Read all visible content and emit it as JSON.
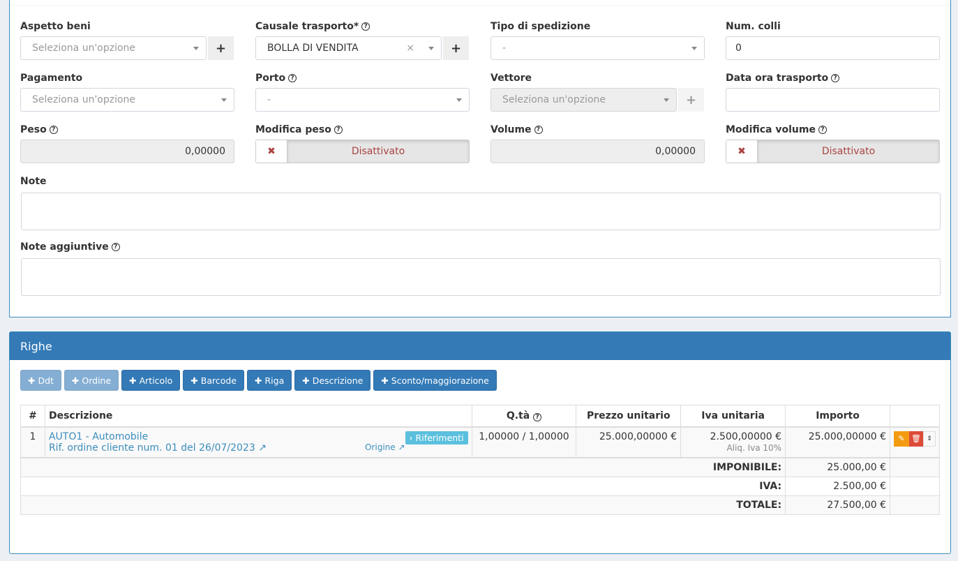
{
  "form": {
    "aspetto_beni": {
      "label": "Aspetto beni",
      "placeholder": "Seleziona un'opzione"
    },
    "causale": {
      "label": "Causale trasporto*",
      "value": "BOLLA DI VENDITA"
    },
    "tipo_spedizione": {
      "label": "Tipo di spedizione",
      "value": "-"
    },
    "num_colli": {
      "label": "Num. colli",
      "value": "0"
    },
    "pagamento": {
      "label": "Pagamento",
      "placeholder": "Seleziona un'opzione"
    },
    "porto": {
      "label": "Porto",
      "value": "-"
    },
    "vettore": {
      "label": "Vettore",
      "placeholder": "Seleziona un'opzione"
    },
    "data_ora": {
      "label": "Data ora trasporto",
      "value": ""
    },
    "peso": {
      "label": "Peso",
      "value": "0,00000"
    },
    "modifica_peso": {
      "label": "Modifica peso",
      "value": "Disattivato"
    },
    "volume": {
      "label": "Volume",
      "value": "0,00000"
    },
    "modifica_volume": {
      "label": "Modifica volume",
      "value": "Disattivato"
    },
    "note": {
      "label": "Note"
    },
    "note_aggiuntive": {
      "label": "Note aggiuntive"
    }
  },
  "righe": {
    "title": "Righe",
    "buttons": [
      "Ddt",
      "Ordine",
      "Articolo",
      "Barcode",
      "Riga",
      "Descrizione",
      "Sconto/maggiorazione"
    ],
    "columns": [
      "#",
      "Descrizione",
      "Q.tà",
      "Prezzo unitario",
      "Iva unitaria",
      "Importo"
    ],
    "rows": [
      {
        "n": "1",
        "desc": "AUTO1 - Automobile",
        "ref": "Rif. ordine cliente num. 01 del 26/07/2023",
        "riferimenti": "Riferimenti",
        "origine": "Origine",
        "qta": "1,00000 / 1,00000",
        "prezzo": "25.000,00000 €",
        "iva": "2.500,00000 €",
        "aliq": "Aliq. Iva 10%",
        "importo": "25.000,00000 €"
      }
    ],
    "totals": [
      {
        "label": "IMPONIBILE:",
        "value": "25.000,00 €"
      },
      {
        "label": "IVA:",
        "value": "2.500,00 €"
      },
      {
        "label": "TOTALE:",
        "value": "27.500,00 €"
      }
    ]
  },
  "colors": {
    "primary": "#337ab7",
    "info": "#5bc0de",
    "warning": "#f39c12",
    "danger": "#dd4b39"
  }
}
